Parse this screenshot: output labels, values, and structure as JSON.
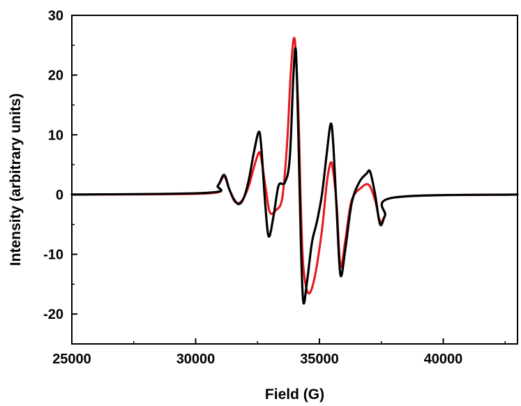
{
  "chart_data": {
    "type": "line",
    "title": "",
    "xlabel": "Field (G)",
    "ylabel": "Intensity (arbitrary units)",
    "xlim": [
      25000,
      43000
    ],
    "ylim": [
      -25,
      30
    ],
    "xticks": [
      25000,
      30000,
      35000,
      40000
    ],
    "yticks": [
      -20,
      -10,
      0,
      10,
      20,
      30
    ],
    "grid": false,
    "legend": "none",
    "series": [
      {
        "color": "#e8141b",
        "x": [
          25000,
          30500,
          30900,
          31150,
          31350,
          31550,
          31750,
          31950,
          32150,
          32350,
          32550,
          32650,
          32850,
          33000,
          33250,
          33500,
          33700,
          33850,
          34000,
          34150,
          34250,
          34350,
          34550,
          34800,
          35100,
          35300,
          35450,
          35550,
          35700,
          35850,
          36050,
          36300,
          36700,
          37000,
          37250,
          37450,
          37650,
          38000,
          43000
        ],
        "y": [
          0,
          0.2,
          1.5,
          3.0,
          1.0,
          -1.0,
          -1.4,
          -0.5,
          1.5,
          4.5,
          7.0,
          6.0,
          0.5,
          -3.0,
          -2.6,
          -0.5,
          9.0,
          21.0,
          26.0,
          14.0,
          -2.0,
          -12.0,
          -16.5,
          -14.0,
          -6.0,
          2.0,
          5.3,
          4.0,
          -2.0,
          -12.0,
          -7.5,
          -1.0,
          1.2,
          1.6,
          -1.0,
          -4.5,
          -3.5,
          -0.5,
          0
        ]
      },
      {
        "color": "#000000",
        "x": [
          25000,
          30500,
          30900,
          31150,
          31350,
          31550,
          31750,
          31950,
          32150,
          32350,
          32550,
          32650,
          32800,
          32950,
          33150,
          33350,
          33600,
          33800,
          33950,
          34050,
          34150,
          34250,
          34350,
          34500,
          34700,
          34900,
          35100,
          35300,
          35450,
          35550,
          35700,
          35850,
          36050,
          36300,
          36600,
          36900,
          37050,
          37250,
          37450,
          37650,
          38000,
          43000
        ],
        "y": [
          0,
          0.3,
          1.5,
          3.3,
          1.0,
          -0.8,
          -1.6,
          -0.5,
          2.5,
          7.0,
          10.5,
          8.0,
          -1.0,
          -7.0,
          -3.5,
          1.5,
          2.0,
          6.0,
          20.0,
          24.0,
          10.0,
          -8.0,
          -18.0,
          -14.5,
          -8.0,
          -4.5,
          0.0,
          7.0,
          11.8,
          9.0,
          -3.0,
          -13.5,
          -9.0,
          -1.5,
          2.0,
          3.5,
          3.8,
          0.0,
          -5.0,
          -3.5,
          -0.5,
          0
        ]
      }
    ]
  }
}
